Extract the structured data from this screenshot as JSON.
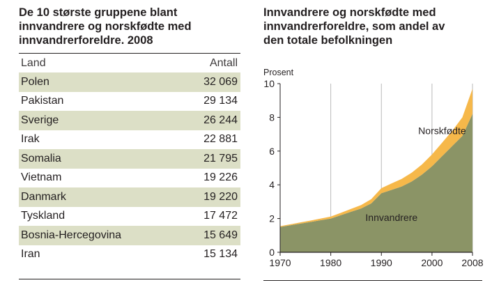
{
  "table_panel": {
    "title_lines": [
      "De 10 største gruppene blant",
      "innvandrere og norskfødte med",
      "innvandrerforeldre. 2008"
    ],
    "columns": [
      "Land",
      "Antall"
    ],
    "rows": [
      {
        "land": "Polen",
        "antall": "32 069"
      },
      {
        "land": "Pakistan",
        "antall": "29 134"
      },
      {
        "land": "Sverige",
        "antall": "26 244"
      },
      {
        "land": "Irak",
        "antall": "22 881"
      },
      {
        "land": "Somalia",
        "antall": "21 795"
      },
      {
        "land": "Vietnam",
        "antall": "19 226"
      },
      {
        "land": "Danmark",
        "antall": "19 220"
      },
      {
        "land": "Tyskland",
        "antall": "17 472"
      },
      {
        "land": "Bosnia-Hercegovina",
        "antall": "15 649"
      },
      {
        "land": "Iran",
        "antall": "15 134"
      }
    ]
  },
  "chart_panel": {
    "title_lines": [
      "Innvandrere og norskfødte med",
      "innvandrerforeldre, som andel av",
      "den totale befolkningen"
    ]
  },
  "chart_data": {
    "type": "area",
    "stacked": true,
    "title": "Innvandrere og norskfødte med innvandrerforeldre, som andel av den totale befolkningen",
    "ylabel": "Prosent",
    "xlabel": "",
    "xlim": [
      1970,
      2008
    ],
    "ylim": [
      0,
      10
    ],
    "x_ticks": [
      "1970",
      "1980",
      "1990",
      "2000",
      "2008"
    ],
    "x_tick_values": [
      1970,
      1980,
      1990,
      2000,
      2008
    ],
    "y_ticks": [
      "0",
      "2",
      "4",
      "6",
      "8",
      "10"
    ],
    "y_tick_values": [
      0,
      2,
      4,
      6,
      8,
      10
    ],
    "grid": "vertical",
    "x": [
      1970,
      1972,
      1974,
      1976,
      1978,
      1980,
      1982,
      1984,
      1986,
      1988,
      1990,
      1992,
      1994,
      1996,
      1998,
      2000,
      2002,
      2004,
      2006,
      2008
    ],
    "series": [
      {
        "name": "Innvandrere",
        "color": "#8b9466",
        "values": [
          1.5,
          1.6,
          1.7,
          1.8,
          1.9,
          2.0,
          2.2,
          2.4,
          2.6,
          2.9,
          3.5,
          3.7,
          3.9,
          4.2,
          4.6,
          5.1,
          5.7,
          6.3,
          6.9,
          8.2
        ]
      },
      {
        "name": "Norskfødte",
        "color": "#f6b84a",
        "values": [
          0.05,
          0.06,
          0.07,
          0.08,
          0.1,
          0.12,
          0.14,
          0.17,
          0.2,
          0.25,
          0.3,
          0.38,
          0.45,
          0.52,
          0.6,
          0.7,
          0.8,
          0.9,
          1.1,
          1.5
        ]
      }
    ],
    "annotations": [
      {
        "text": "Norskfødte",
        "x": 2002,
        "y": 7.0
      },
      {
        "text": "Innvandrere",
        "x": 1992,
        "y": 1.85
      }
    ]
  }
}
